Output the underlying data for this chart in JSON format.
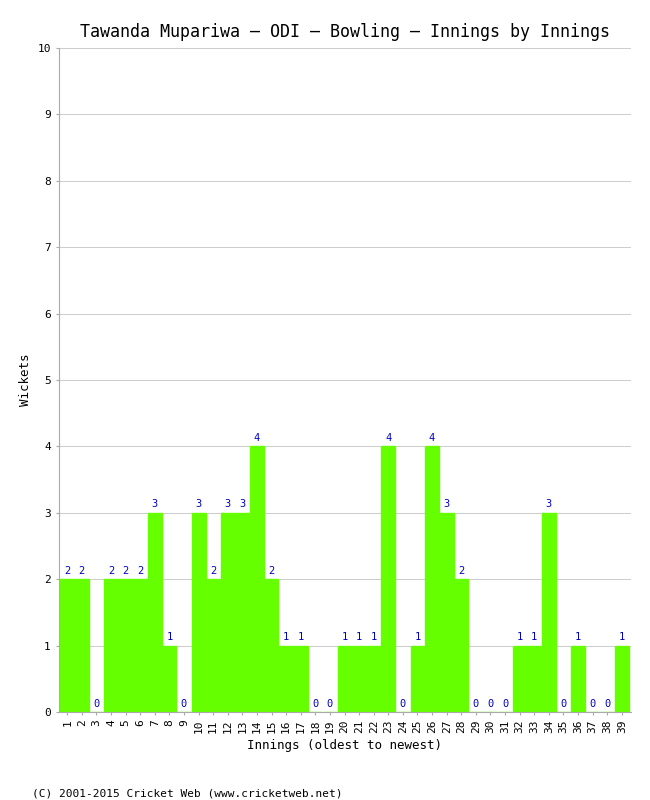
{
  "title": "Tawanda Mupariwa – ODI – Bowling – Innings by Innings",
  "xlabel": "Innings (oldest to newest)",
  "ylabel": "Wickets",
  "bar_color": "#66ff00",
  "label_color": "#0000cc",
  "background_color": "#ffffff",
  "grid_color": "#cccccc",
  "ylim": [
    0,
    10
  ],
  "yticks": [
    0,
    1,
    2,
    3,
    4,
    5,
    6,
    7,
    8,
    9,
    10
  ],
  "innings": [
    1,
    2,
    3,
    4,
    5,
    6,
    7,
    8,
    9,
    10,
    11,
    12,
    13,
    14,
    15,
    16,
    17,
    18,
    19,
    20,
    21,
    22,
    23,
    24,
    25,
    26,
    27,
    28,
    29,
    30,
    31,
    32,
    33,
    34,
    35,
    36,
    37,
    38,
    39
  ],
  "wickets": [
    2,
    2,
    0,
    2,
    2,
    2,
    3,
    1,
    0,
    3,
    2,
    3,
    3,
    4,
    2,
    1,
    1,
    0,
    0,
    1,
    1,
    1,
    4,
    0,
    1,
    4,
    3,
    2,
    0,
    0,
    0,
    1,
    1,
    3,
    0,
    1,
    0,
    0,
    1
  ],
  "footer": "(C) 2001-2015 Cricket Web (www.cricketweb.net)",
  "title_fontsize": 12,
  "axis_label_fontsize": 9,
  "tick_fontsize": 8,
  "bar_label_fontsize": 7.5,
  "footer_fontsize": 8
}
